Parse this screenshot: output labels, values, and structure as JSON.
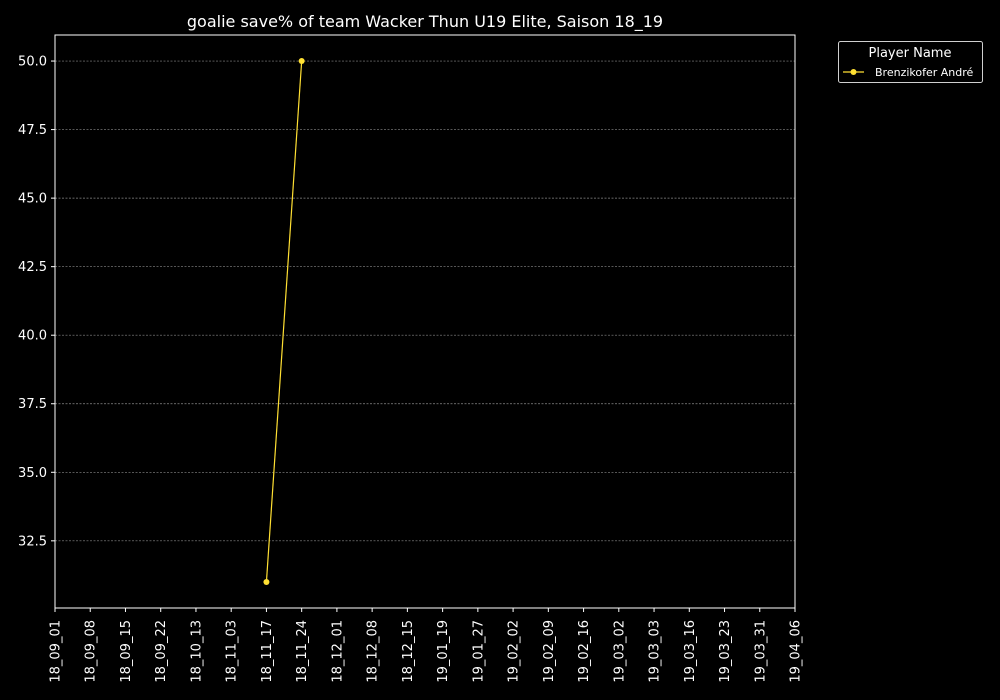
{
  "chart_data": {
    "type": "line",
    "title": "goalie save% of team Wacker Thun U19 Elite, Saison 18_19",
    "xlabel": "",
    "ylabel": "",
    "categories": [
      "18_09_01",
      "18_09_08",
      "18_09_15",
      "18_09_22",
      "18_10_13",
      "18_11_03",
      "18_11_17",
      "18_11_24",
      "18_12_01",
      "18_12_08",
      "18_12_15",
      "19_01_19",
      "19_01_27",
      "19_02_02",
      "19_02_09",
      "19_02_16",
      "19_03_02",
      "19_03_03",
      "19_03_16",
      "19_03_23",
      "19_03_31",
      "19_04_06"
    ],
    "y_ticks": [
      "32.5",
      "35.0",
      "37.5",
      "40.0",
      "42.5",
      "45.0",
      "47.5",
      "50.0"
    ],
    "ylim": [
      30.05,
      50.95
    ],
    "grid": true,
    "legend": {
      "title": "Player Name",
      "placement": "outside-top-right"
    },
    "series": [
      {
        "name": "Brenzikofer André",
        "color": "#ffe033",
        "points": [
          {
            "x": "18_11_17",
            "y": 31.0
          },
          {
            "x": "18_11_24",
            "y": 50.0
          }
        ]
      }
    ],
    "colors": {
      "background": "#000000",
      "axes": "#ffffff",
      "grid": "#8a8a8a",
      "text": "#ffffff"
    }
  }
}
